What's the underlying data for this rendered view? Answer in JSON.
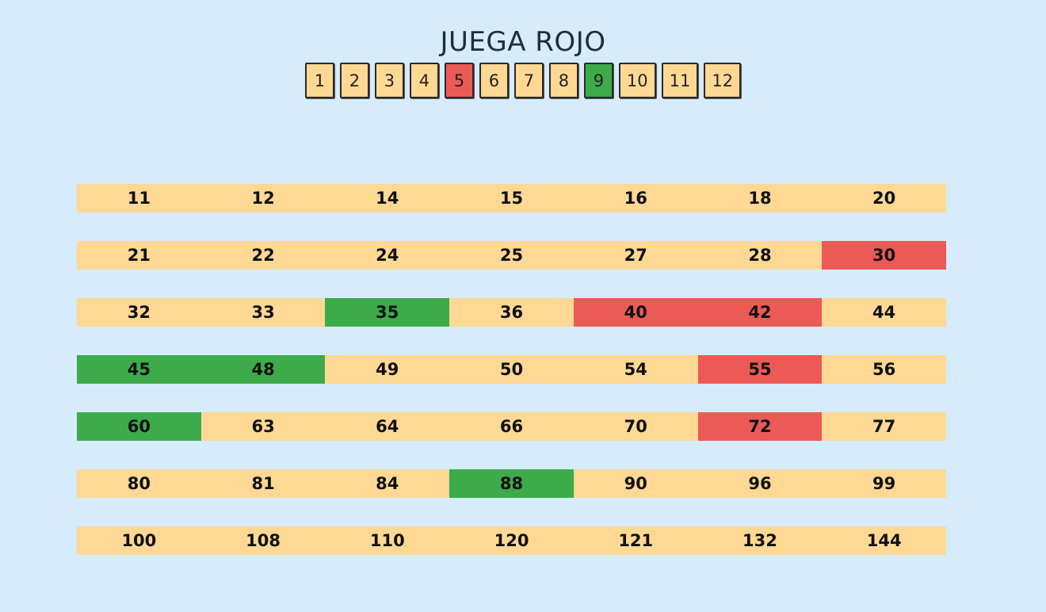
{
  "title": "JUEGA ROJO",
  "colors": {
    "background": "#d6ebfc",
    "neutral": "#ffd894",
    "red": "#ec5a56",
    "green": "#3dab4a"
  },
  "selector": [
    {
      "label": "1",
      "state": "neutral"
    },
    {
      "label": "2",
      "state": "neutral"
    },
    {
      "label": "3",
      "state": "neutral"
    },
    {
      "label": "4",
      "state": "neutral"
    },
    {
      "label": "5",
      "state": "red"
    },
    {
      "label": "6",
      "state": "neutral"
    },
    {
      "label": "7",
      "state": "neutral"
    },
    {
      "label": "8",
      "state": "neutral"
    },
    {
      "label": "9",
      "state": "green"
    },
    {
      "label": "10",
      "state": "neutral"
    },
    {
      "label": "11",
      "state": "neutral"
    },
    {
      "label": "12",
      "state": "neutral"
    }
  ],
  "board": [
    [
      {
        "v": "11",
        "s": "neutral"
      },
      {
        "v": "12",
        "s": "neutral"
      },
      {
        "v": "14",
        "s": "neutral"
      },
      {
        "v": "15",
        "s": "neutral"
      },
      {
        "v": "16",
        "s": "neutral"
      },
      {
        "v": "18",
        "s": "neutral"
      },
      {
        "v": "20",
        "s": "neutral"
      }
    ],
    [
      {
        "v": "21",
        "s": "neutral"
      },
      {
        "v": "22",
        "s": "neutral"
      },
      {
        "v": "24",
        "s": "neutral"
      },
      {
        "v": "25",
        "s": "neutral"
      },
      {
        "v": "27",
        "s": "neutral"
      },
      {
        "v": "28",
        "s": "neutral"
      },
      {
        "v": "30",
        "s": "red"
      }
    ],
    [
      {
        "v": "32",
        "s": "neutral"
      },
      {
        "v": "33",
        "s": "neutral"
      },
      {
        "v": "35",
        "s": "green"
      },
      {
        "v": "36",
        "s": "neutral"
      },
      {
        "v": "40",
        "s": "red"
      },
      {
        "v": "42",
        "s": "red"
      },
      {
        "v": "44",
        "s": "neutral"
      }
    ],
    [
      {
        "v": "45",
        "s": "green"
      },
      {
        "v": "48",
        "s": "green"
      },
      {
        "v": "49",
        "s": "neutral"
      },
      {
        "v": "50",
        "s": "neutral"
      },
      {
        "v": "54",
        "s": "neutral"
      },
      {
        "v": "55",
        "s": "red"
      },
      {
        "v": "56",
        "s": "neutral"
      }
    ],
    [
      {
        "v": "60",
        "s": "green"
      },
      {
        "v": "63",
        "s": "neutral"
      },
      {
        "v": "64",
        "s": "neutral"
      },
      {
        "v": "66",
        "s": "neutral"
      },
      {
        "v": "70",
        "s": "neutral"
      },
      {
        "v": "72",
        "s": "red"
      },
      {
        "v": "77",
        "s": "neutral"
      }
    ],
    [
      {
        "v": "80",
        "s": "neutral"
      },
      {
        "v": "81",
        "s": "neutral"
      },
      {
        "v": "84",
        "s": "neutral"
      },
      {
        "v": "88",
        "s": "green"
      },
      {
        "v": "90",
        "s": "neutral"
      },
      {
        "v": "96",
        "s": "neutral"
      },
      {
        "v": "99",
        "s": "neutral"
      }
    ],
    [
      {
        "v": "100",
        "s": "neutral"
      },
      {
        "v": "108",
        "s": "neutral"
      },
      {
        "v": "110",
        "s": "neutral"
      },
      {
        "v": "120",
        "s": "neutral"
      },
      {
        "v": "121",
        "s": "neutral"
      },
      {
        "v": "132",
        "s": "neutral"
      },
      {
        "v": "144",
        "s": "neutral"
      }
    ]
  ]
}
